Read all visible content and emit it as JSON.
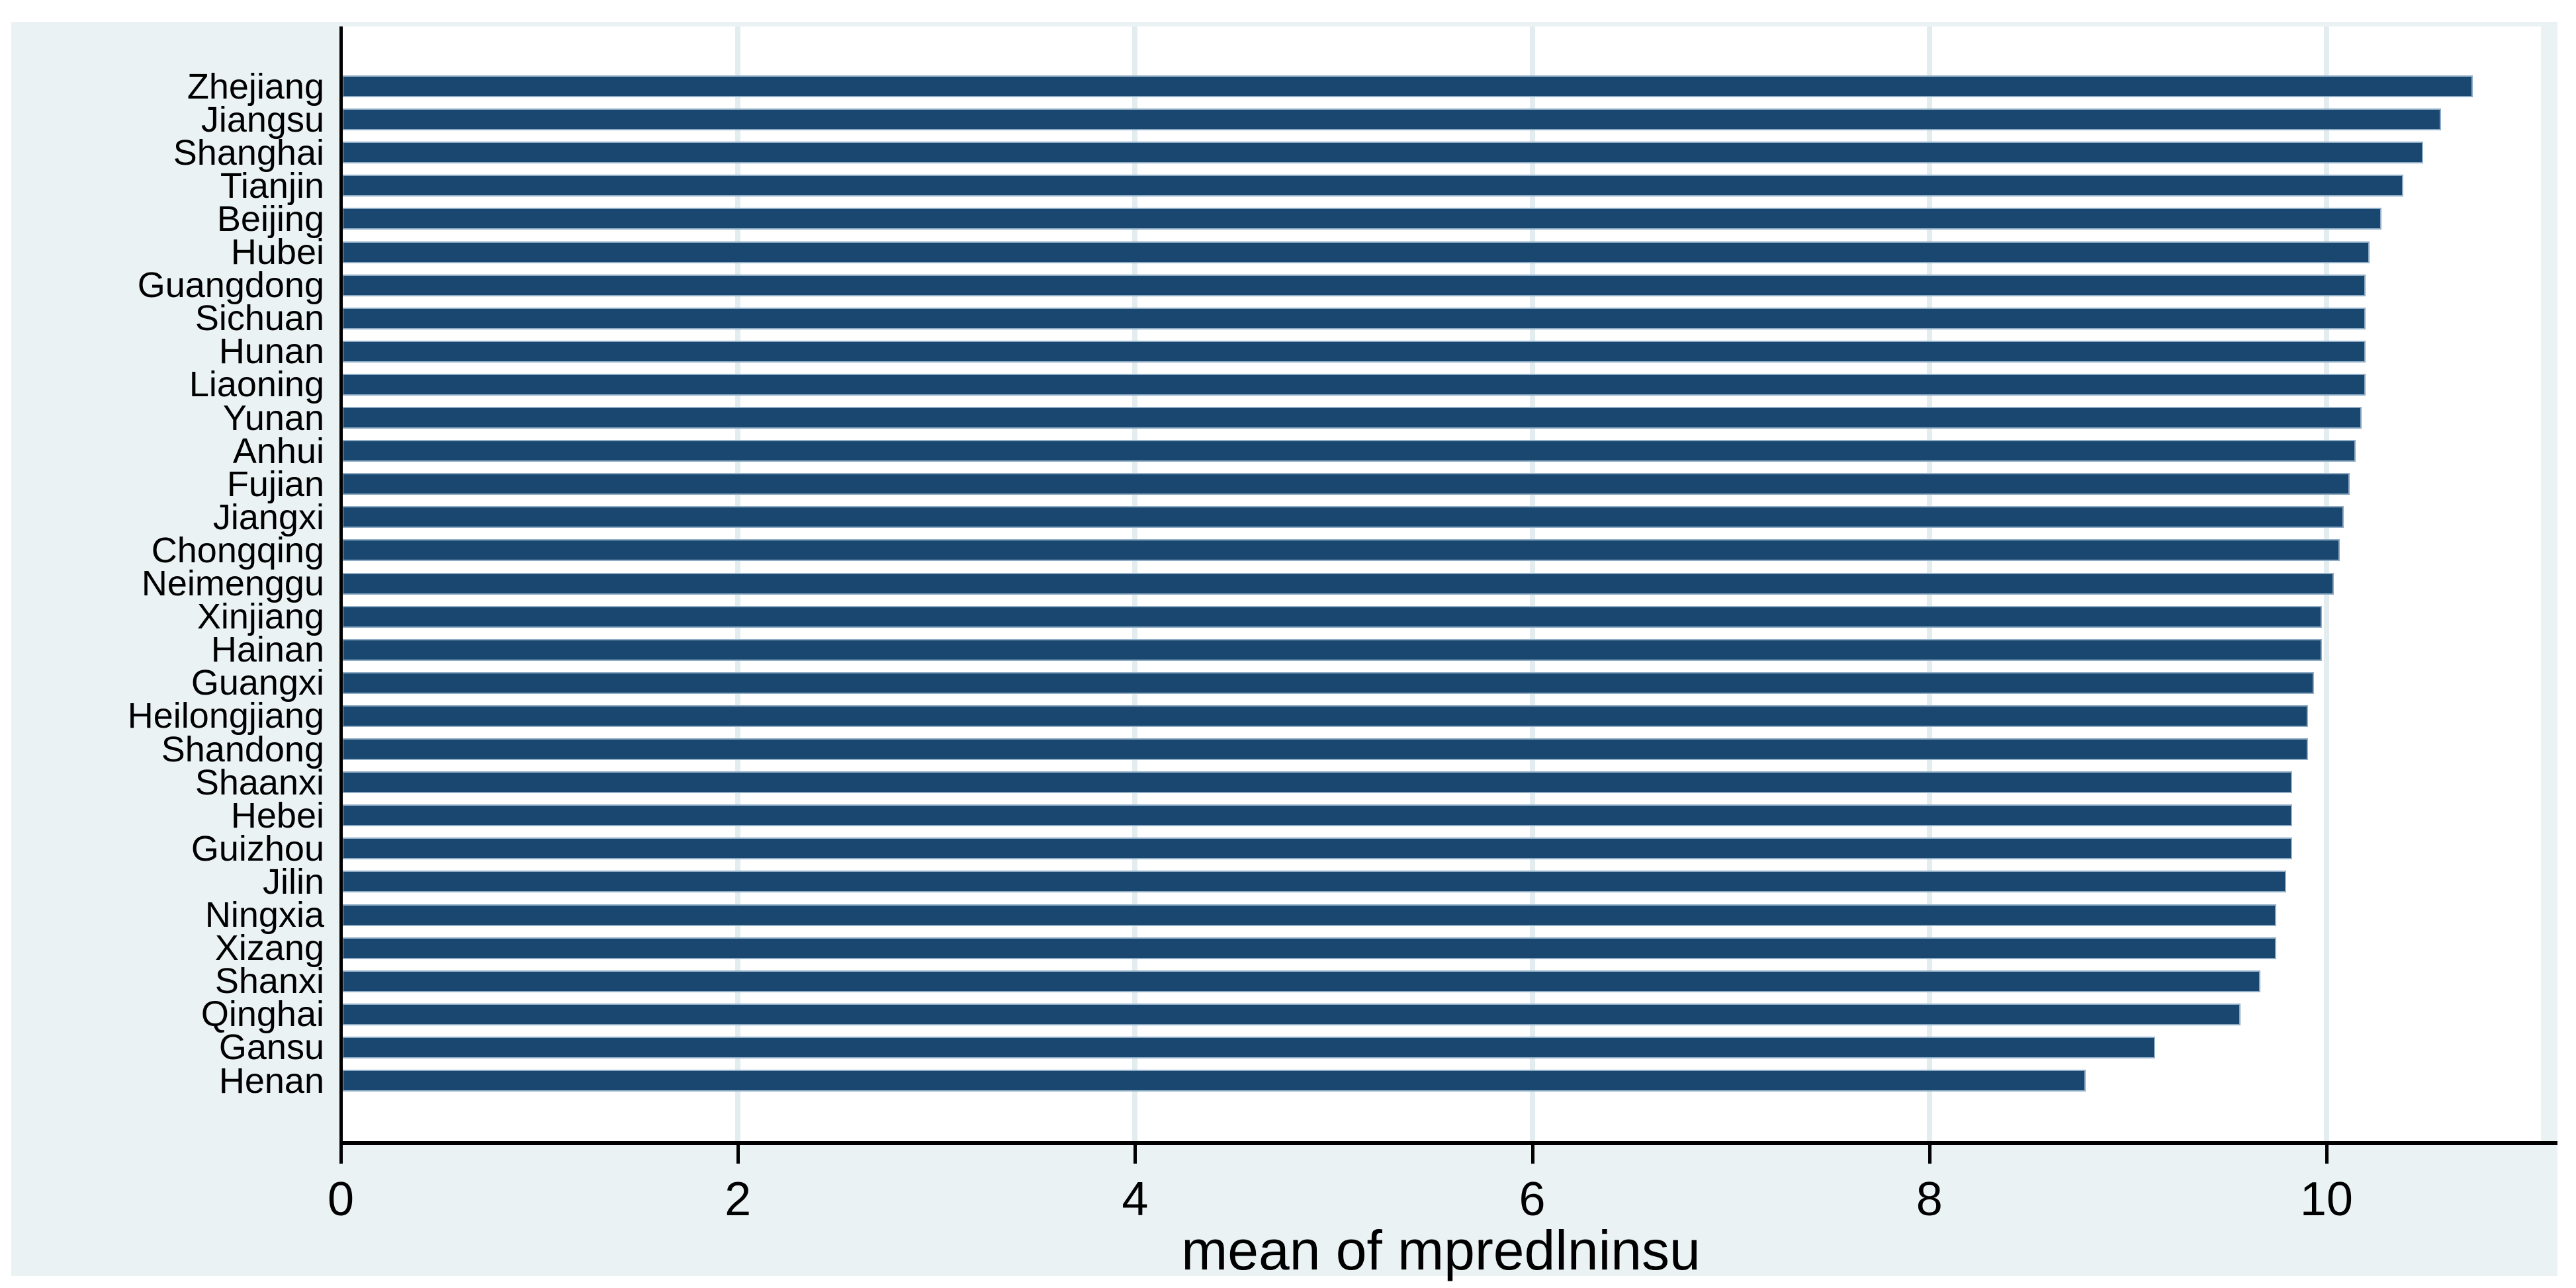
{
  "figure": {
    "background_color": "#eaf2f3",
    "plot_background_color": "#ffffff",
    "bar_color": "#1a476f",
    "bar_outline_color": "#8fadc6",
    "grid_color": "#e3edf0",
    "axis_color": "#000000",
    "text_color": "#000000"
  },
  "chart_data": {
    "type": "bar",
    "orientation": "horizontal",
    "title": "",
    "xlabel": "mean of mpredlninsu",
    "ylabel": "",
    "categories": [
      "Zhejiang",
      "Jiangsu",
      "Shanghai",
      "Tianjin",
      "Beijing",
      "Hubei",
      "Guangdong",
      "Sichuan",
      "Hunan",
      "Liaoning",
      "Yunan",
      "Anhui",
      "Fujian",
      "Jiangxi",
      "Chongqing",
      "Neimenggu",
      "Xinjiang",
      "Hainan",
      "Guangxi",
      "Heilongjiang",
      "Shandong",
      "Shaanxi",
      "Hebei",
      "Guizhou",
      "Jilin",
      "Ningxia",
      "Xizang",
      "Shanxi",
      "Qinghai",
      "Gansu",
      "Henan"
    ],
    "values": [
      10.73,
      10.57,
      10.48,
      10.38,
      10.27,
      10.21,
      10.19,
      10.19,
      10.19,
      10.19,
      10.17,
      10.14,
      10.11,
      10.08,
      10.06,
      10.03,
      9.97,
      9.97,
      9.93,
      9.9,
      9.9,
      9.82,
      9.82,
      9.82,
      9.79,
      9.74,
      9.74,
      9.66,
      9.56,
      9.13,
      8.78
    ],
    "x_ticks": [
      0,
      2,
      4,
      6,
      8,
      10
    ],
    "xlim": [
      0,
      11.08
    ],
    "grid": true,
    "legend": false,
    "sort_order": "descending"
  }
}
